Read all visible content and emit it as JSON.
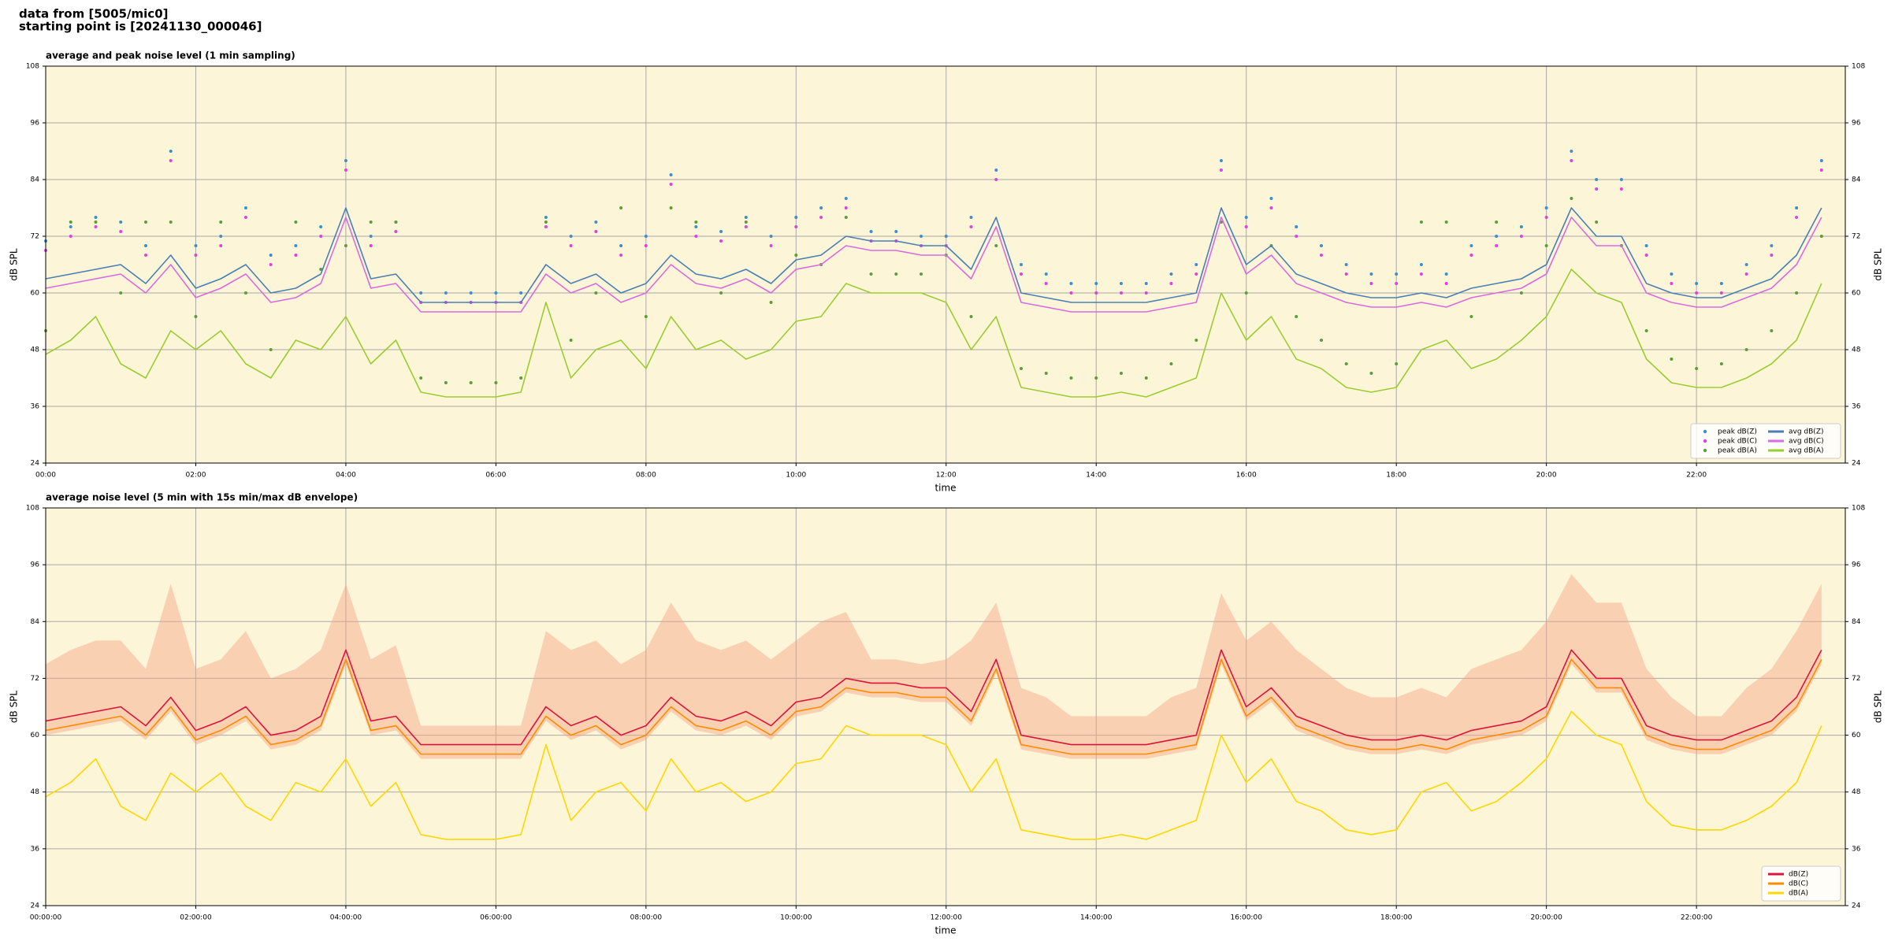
{
  "header": {
    "lines": [
      "data from [5005/mic0]",
      "starting point is [20241130_000046]"
    ]
  },
  "chart_data": [
    {
      "type": "line",
      "title": "average and peak noise level (1 min sampling)",
      "xlabel": "time",
      "ylabel": "dB SPL",
      "x": [
        0,
        20,
        40,
        60,
        80,
        100,
        120,
        140,
        160,
        180,
        200,
        220,
        240,
        260,
        280,
        300,
        320,
        340,
        360,
        380,
        400,
        420,
        440,
        460,
        480,
        500,
        520,
        540,
        560,
        580,
        600,
        620,
        640,
        660,
        680,
        700,
        720,
        740,
        760,
        780,
        800,
        820,
        840,
        860,
        880,
        900,
        920,
        940,
        960,
        980,
        1000,
        1020,
        1040,
        1060,
        1080,
        1100,
        1120,
        1140,
        1160,
        1180,
        1200,
        1220,
        1240,
        1260,
        1280,
        1300,
        1320,
        1340,
        1360,
        1380,
        1400,
        1420
      ],
      "xlim": [
        0,
        1439
      ],
      "xticks": [
        {
          "value": 0,
          "label": "00:00"
        },
        {
          "value": 120,
          "label": "02:00"
        },
        {
          "value": 240,
          "label": "04:00"
        },
        {
          "value": 360,
          "label": "06:00"
        },
        {
          "value": 480,
          "label": "08:00"
        },
        {
          "value": 600,
          "label": "10:00"
        },
        {
          "value": 720,
          "label": "12:00"
        },
        {
          "value": 840,
          "label": "14:00"
        },
        {
          "value": 960,
          "label": "16:00"
        },
        {
          "value": 1080,
          "label": "18:00"
        },
        {
          "value": 1200,
          "label": "20:00"
        },
        {
          "value": 1320,
          "label": "22:00"
        }
      ],
      "ylim": [
        24,
        108
      ],
      "yticks": [
        24,
        36,
        48,
        60,
        72,
        84,
        96,
        108
      ],
      "grid": true,
      "legend": "lower right",
      "legend_columns": 2,
      "series": [
        {
          "name": "peak dB(Z)",
          "kind": "markers",
          "color": "#3b8ed0",
          "values": [
            71,
            74,
            76,
            75,
            70,
            90,
            70,
            72,
            78,
            68,
            70,
            74,
            88,
            72,
            75,
            60,
            60,
            60,
            60,
            60,
            76,
            72,
            75,
            70,
            72,
            85,
            74,
            73,
            76,
            72,
            76,
            78,
            80,
            73,
            73,
            72,
            72,
            76,
            86,
            66,
            64,
            62,
            62,
            62,
            62,
            64,
            66,
            88,
            76,
            80,
            74,
            70,
            66,
            64,
            64,
            66,
            64,
            70,
            72,
            74,
            78,
            90,
            84,
            84,
            70,
            64,
            62,
            62,
            66,
            70,
            78,
            88
          ]
        },
        {
          "name": "peak dB(C)",
          "kind": "markers",
          "color": "#e040e0",
          "values": [
            69,
            72,
            74,
            73,
            68,
            88,
            68,
            70,
            76,
            66,
            68,
            72,
            86,
            70,
            73,
            58,
            58,
            58,
            58,
            58,
            74,
            70,
            73,
            68,
            70,
            83,
            72,
            71,
            74,
            70,
            74,
            76,
            78,
            71,
            71,
            70,
            70,
            74,
            84,
            64,
            62,
            60,
            60,
            60,
            60,
            62,
            64,
            86,
            74,
            78,
            72,
            68,
            64,
            62,
            62,
            64,
            62,
            68,
            70,
            72,
            76,
            88,
            82,
            82,
            68,
            62,
            60,
            60,
            64,
            68,
            76,
            86
          ]
        },
        {
          "name": "peak dB(A)",
          "kind": "markers",
          "color": "#5a9e3a",
          "values": [
            52,
            75,
            75,
            60,
            75,
            75,
            55,
            75,
            60,
            48,
            75,
            65,
            70,
            75,
            75,
            42,
            41,
            41,
            41,
            42,
            75,
            50,
            60,
            78,
            55,
            78,
            75,
            60,
            75,
            58,
            68,
            66,
            76,
            64,
            64,
            64,
            68,
            55,
            70,
            44,
            43,
            42,
            42,
            43,
            42,
            45,
            50,
            75,
            60,
            70,
            55,
            50,
            45,
            43,
            45,
            75,
            75,
            55,
            75,
            60,
            70,
            80,
            75,
            70,
            52,
            46,
            44,
            45,
            48,
            52,
            60,
            72
          ]
        },
        {
          "name": "avg dB(Z)",
          "kind": "line",
          "color": "#4a7fb5",
          "values": [
            63,
            64,
            65,
            66,
            62,
            68,
            61,
            63,
            66,
            60,
            61,
            64,
            78,
            63,
            64,
            58,
            58,
            58,
            58,
            58,
            66,
            62,
            64,
            60,
            62,
            68,
            64,
            63,
            65,
            62,
            67,
            68,
            72,
            71,
            71,
            70,
            70,
            65,
            76,
            60,
            59,
            58,
            58,
            58,
            58,
            59,
            60,
            78,
            66,
            70,
            64,
            62,
            60,
            59,
            59,
            60,
            59,
            61,
            62,
            63,
            66,
            78,
            72,
            72,
            62,
            60,
            59,
            59,
            61,
            63,
            68,
            78
          ]
        },
        {
          "name": "avg dB(C)",
          "kind": "line",
          "color": "#d96be0",
          "values": [
            61,
            62,
            63,
            64,
            60,
            66,
            59,
            61,
            64,
            58,
            59,
            62,
            76,
            61,
            62,
            56,
            56,
            56,
            56,
            56,
            64,
            60,
            62,
            58,
            60,
            66,
            62,
            61,
            63,
            60,
            65,
            66,
            70,
            69,
            69,
            68,
            68,
            63,
            74,
            58,
            57,
            56,
            56,
            56,
            56,
            57,
            58,
            76,
            64,
            68,
            62,
            60,
            58,
            57,
            57,
            58,
            57,
            59,
            60,
            61,
            64,
            76,
            70,
            70,
            60,
            58,
            57,
            57,
            59,
            61,
            66,
            76
          ]
        },
        {
          "name": "avg dB(A)",
          "kind": "line",
          "color": "#9acd32",
          "values": [
            47,
            50,
            55,
            45,
            42,
            52,
            48,
            52,
            45,
            42,
            50,
            48,
            55,
            45,
            50,
            39,
            38,
            38,
            38,
            39,
            58,
            42,
            48,
            50,
            44,
            55,
            48,
            50,
            46,
            48,
            54,
            55,
            62,
            60,
            60,
            60,
            58,
            48,
            55,
            40,
            39,
            38,
            38,
            39,
            38,
            40,
            42,
            60,
            50,
            55,
            46,
            44,
            40,
            39,
            40,
            48,
            50,
            44,
            46,
            50,
            55,
            65,
            60,
            58,
            46,
            41,
            40,
            40,
            42,
            45,
            50,
            62
          ]
        }
      ]
    },
    {
      "type": "line",
      "title": "average noise level (5 min with 15s min/max dB envelope)",
      "xlabel": "time",
      "ylabel": "dB SPL",
      "x": [
        0,
        20,
        40,
        60,
        80,
        100,
        120,
        140,
        160,
        180,
        200,
        220,
        240,
        260,
        280,
        300,
        320,
        340,
        360,
        380,
        400,
        420,
        440,
        460,
        480,
        500,
        520,
        540,
        560,
        580,
        600,
        620,
        640,
        660,
        680,
        700,
        720,
        740,
        760,
        780,
        800,
        820,
        840,
        860,
        880,
        900,
        920,
        940,
        960,
        980,
        1000,
        1020,
        1040,
        1060,
        1080,
        1100,
        1120,
        1140,
        1160,
        1180,
        1200,
        1220,
        1240,
        1260,
        1280,
        1300,
        1320,
        1340,
        1360,
        1380,
        1400,
        1420
      ],
      "xlim": [
        0,
        1439
      ],
      "xticks": [
        {
          "value": 0,
          "label": "00:00:00"
        },
        {
          "value": 120,
          "label": "02:00:00"
        },
        {
          "value": 240,
          "label": "04:00:00"
        },
        {
          "value": 360,
          "label": "06:00:00"
        },
        {
          "value": 480,
          "label": "08:00:00"
        },
        {
          "value": 600,
          "label": "10:00:00"
        },
        {
          "value": 720,
          "label": "12:00:00"
        },
        {
          "value": 840,
          "label": "14:00:00"
        },
        {
          "value": 960,
          "label": "16:00:00"
        },
        {
          "value": 1080,
          "label": "18:00:00"
        },
        {
          "value": 1200,
          "label": "20:00:00"
        },
        {
          "value": 1320,
          "label": "22:00:00"
        }
      ],
      "ylim": [
        24,
        108
      ],
      "yticks": [
        24,
        36,
        48,
        60,
        72,
        84,
        96,
        108
      ],
      "grid": true,
      "legend": "lower right",
      "legend_columns": 1,
      "envelope": {
        "color": "#f4a582",
        "high": [
          75,
          78,
          80,
          80,
          74,
          92,
          74,
          76,
          82,
          72,
          74,
          78,
          92,
          76,
          79,
          62,
          62,
          62,
          62,
          62,
          82,
          78,
          80,
          75,
          78,
          88,
          80,
          78,
          80,
          76,
          80,
          84,
          86,
          76,
          76,
          75,
          76,
          80,
          88,
          70,
          68,
          64,
          64,
          64,
          64,
          68,
          70,
          90,
          80,
          84,
          78,
          74,
          70,
          68,
          68,
          70,
          68,
          74,
          76,
          78,
          84,
          94,
          88,
          88,
          74,
          68,
          64,
          64,
          70,
          74,
          82,
          92
        ],
        "low": [
          60,
          61,
          62,
          63,
          59,
          65,
          58,
          60,
          63,
          57,
          58,
          61,
          75,
          60,
          61,
          55,
          55,
          55,
          55,
          55,
          63,
          59,
          61,
          57,
          59,
          65,
          61,
          60,
          62,
          59,
          64,
          65,
          69,
          68,
          68,
          67,
          67,
          62,
          73,
          57,
          56,
          55,
          55,
          55,
          55,
          56,
          57,
          75,
          63,
          67,
          61,
          59,
          57,
          56,
          56,
          57,
          56,
          58,
          59,
          60,
          63,
          75,
          69,
          69,
          59,
          57,
          56,
          56,
          58,
          60,
          65,
          75
        ]
      },
      "series": [
        {
          "name": "dB(Z)",
          "kind": "line",
          "color": "#dc143c",
          "values": [
            63,
            64,
            65,
            66,
            62,
            68,
            61,
            63,
            66,
            60,
            61,
            64,
            78,
            63,
            64,
            58,
            58,
            58,
            58,
            58,
            66,
            62,
            64,
            60,
            62,
            68,
            64,
            63,
            65,
            62,
            67,
            68,
            72,
            71,
            71,
            70,
            70,
            65,
            76,
            60,
            59,
            58,
            58,
            58,
            58,
            59,
            60,
            78,
            66,
            70,
            64,
            62,
            60,
            59,
            59,
            60,
            59,
            61,
            62,
            63,
            66,
            78,
            72,
            72,
            62,
            60,
            59,
            59,
            61,
            63,
            68,
            78
          ]
        },
        {
          "name": "dB(C)",
          "kind": "line",
          "color": "#ff8c00",
          "values": [
            61,
            62,
            63,
            64,
            60,
            66,
            59,
            61,
            64,
            58,
            59,
            62,
            76,
            61,
            62,
            56,
            56,
            56,
            56,
            56,
            64,
            60,
            62,
            58,
            60,
            66,
            62,
            61,
            63,
            60,
            65,
            66,
            70,
            69,
            69,
            68,
            68,
            63,
            74,
            58,
            57,
            56,
            56,
            56,
            56,
            57,
            58,
            76,
            64,
            68,
            62,
            60,
            58,
            57,
            57,
            58,
            57,
            59,
            60,
            61,
            64,
            76,
            70,
            70,
            60,
            58,
            57,
            57,
            59,
            61,
            66,
            76
          ]
        },
        {
          "name": "dB(A)",
          "kind": "line",
          "color": "#ffd700",
          "values": [
            47,
            50,
            55,
            45,
            42,
            52,
            48,
            52,
            45,
            42,
            50,
            48,
            55,
            45,
            50,
            39,
            38,
            38,
            38,
            39,
            58,
            42,
            48,
            50,
            44,
            55,
            48,
            50,
            46,
            48,
            54,
            55,
            62,
            60,
            60,
            60,
            58,
            48,
            55,
            40,
            39,
            38,
            38,
            39,
            38,
            40,
            42,
            60,
            50,
            55,
            46,
            44,
            40,
            39,
            40,
            48,
            50,
            44,
            46,
            50,
            55,
            65,
            60,
            58,
            46,
            41,
            40,
            40,
            42,
            45,
            50,
            62
          ]
        }
      ]
    }
  ]
}
